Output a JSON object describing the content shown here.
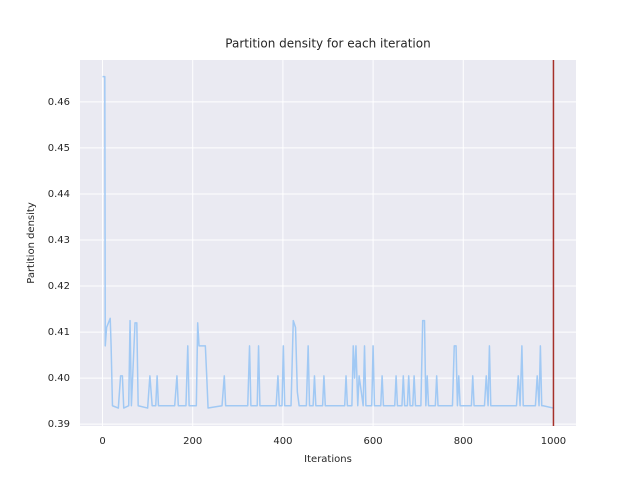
{
  "chart_data": {
    "type": "line",
    "title": "Partition density for each iteration",
    "x_label": "Iterations",
    "y_label": "Partition density",
    "xlim": [
      -50,
      1050
    ],
    "ylim": [
      0.3896,
      0.4691
    ],
    "xticks": [
      0,
      200,
      400,
      600,
      800,
      1000
    ],
    "yticks": [
      0.39,
      {
        "value": 0.4,
        "label": "0.40"
      },
      0.41,
      0.42,
      0.43,
      0.44,
      0.45,
      0.46
    ],
    "grid": true,
    "background": "#eaeaf2",
    "vlines": [
      {
        "x": 1000,
        "color": "#a5302a"
      }
    ],
    "x": [
      0,
      5,
      6,
      9,
      17,
      19,
      22,
      35,
      40,
      44,
      47,
      58,
      61,
      64,
      72,
      76,
      79,
      100,
      105,
      110,
      118,
      121,
      124,
      160,
      165,
      168,
      185,
      189,
      192,
      208,
      211,
      214,
      228,
      231,
      234,
      265,
      270,
      273,
      322,
      326,
      329,
      343,
      346,
      349,
      385,
      389,
      392,
      398,
      401,
      404,
      418,
      423,
      428,
      432,
      436,
      452,
      456,
      459,
      467,
      470,
      473,
      488,
      491,
      494,
      537,
      540,
      543,
      553,
      556,
      559,
      562,
      566,
      569,
      578,
      581,
      584,
      597,
      600,
      603,
      617,
      620,
      623,
      648,
      651,
      654,
      664,
      667,
      670,
      676,
      679,
      682,
      688,
      691,
      694,
      706,
      710,
      714,
      717,
      720,
      723,
      738,
      741,
      744,
      776,
      780,
      784,
      787,
      790,
      793,
      818,
      821,
      824,
      847,
      851,
      855,
      858,
      861,
      864,
      918,
      922,
      926,
      930,
      933,
      936,
      960,
      964,
      968,
      971,
      974,
      977,
      1000
    ],
    "series": [
      {
        "name": "Partition density",
        "color": "#a1c9f4",
        "values": [
          0.4655,
          0.4655,
          0.407,
          0.411,
          0.413,
          0.407,
          0.394,
          0.3935,
          0.4005,
          0.4005,
          0.3935,
          0.394,
          0.4125,
          0.394,
          0.412,
          0.412,
          0.394,
          0.3935,
          0.4005,
          0.394,
          0.394,
          0.4005,
          0.394,
          0.394,
          0.4005,
          0.394,
          0.394,
          0.407,
          0.394,
          0.394,
          0.412,
          0.407,
          0.407,
          0.4005,
          0.3935,
          0.394,
          0.4005,
          0.394,
          0.394,
          0.407,
          0.394,
          0.394,
          0.407,
          0.394,
          0.394,
          0.4005,
          0.394,
          0.394,
          0.407,
          0.394,
          0.394,
          0.4125,
          0.411,
          0.397,
          0.394,
          0.394,
          0.407,
          0.394,
          0.394,
          0.4005,
          0.394,
          0.394,
          0.4005,
          0.394,
          0.394,
          0.4005,
          0.394,
          0.394,
          0.407,
          0.4,
          0.407,
          0.394,
          0.4005,
          0.394,
          0.407,
          0.394,
          0.394,
          0.407,
          0.394,
          0.394,
          0.4005,
          0.394,
          0.394,
          0.4005,
          0.394,
          0.394,
          0.4005,
          0.394,
          0.394,
          0.4005,
          0.394,
          0.394,
          0.4005,
          0.394,
          0.394,
          0.4125,
          0.4125,
          0.394,
          0.4005,
          0.394,
          0.394,
          0.4005,
          0.394,
          0.394,
          0.407,
          0.407,
          0.394,
          0.4005,
          0.394,
          0.394,
          0.4005,
          0.394,
          0.394,
          0.4005,
          0.394,
          0.407,
          0.394,
          0.394,
          0.394,
          0.4005,
          0.394,
          0.407,
          0.394,
          0.394,
          0.394,
          0.4005,
          0.394,
          0.407,
          0.394,
          0.394,
          0.3935
        ]
      }
    ]
  }
}
